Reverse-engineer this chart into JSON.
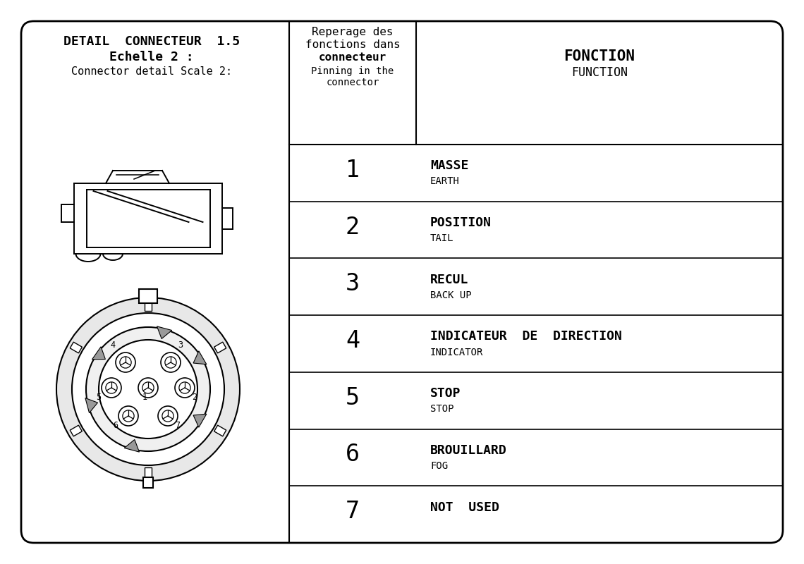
{
  "title_line1": "DETAIL  CONNECTEUR  1.5",
  "title_line2": "Echelle 2 :",
  "title_line3": "Connector detail Scale 2:",
  "col2_header_line1": "Reperage des",
  "col2_header_line2": "fonctions dans",
  "col2_header_line3": "connecteur",
  "col2_header_line4": "Pinning in the",
  "col2_header_line5": "connector",
  "col3_header_line1": "FONCTION",
  "col3_header_line2": "FUNCTION",
  "pins": [
    {
      "num": "1",
      "func_bold": "MASSE",
      "func_small": "EARTH"
    },
    {
      "num": "2",
      "func_bold": "POSITION",
      "func_small": "TAIL"
    },
    {
      "num": "3",
      "func_bold": "RECUL",
      "func_small": "BACK UP"
    },
    {
      "num": "4",
      "func_bold": "INDICATEUR  DE  DIRECTION",
      "func_small": "INDICATOR"
    },
    {
      "num": "5",
      "func_bold": "STOP",
      "func_small": "STOP"
    },
    {
      "num": "6",
      "func_bold": "BROUILLARD",
      "func_small": "FOG"
    },
    {
      "num": "7",
      "func_bold": "NOT  USED",
      "func_small": ""
    }
  ],
  "bg_color": "#ffffff",
  "line_color": "#000000",
  "text_color": "#000000"
}
